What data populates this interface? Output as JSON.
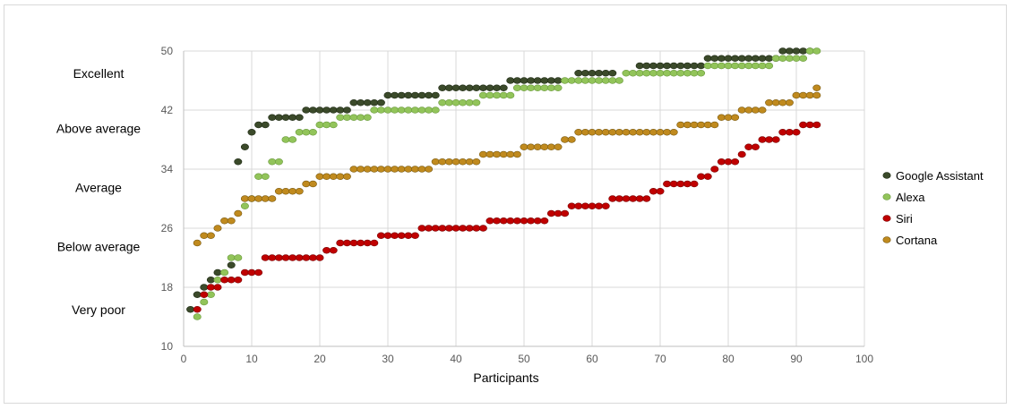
{
  "chart_data": {
    "type": "scatter",
    "title": "",
    "xlabel": "Participants",
    "ylabel": "",
    "xlim": [
      0,
      100
    ],
    "ylim": [
      10,
      50
    ],
    "x_ticks": [
      0,
      10,
      20,
      30,
      40,
      50,
      60,
      70,
      80,
      90,
      100
    ],
    "y_ticks": [
      10,
      18,
      26,
      34,
      42,
      50
    ],
    "grid": true,
    "legend_position": "right",
    "category_labels": [
      {
        "label": "Excellent",
        "y": 47
      },
      {
        "label": "Above average",
        "y": 39.5
      },
      {
        "label": "Average",
        "y": 31.5
      },
      {
        "label": "Below average",
        "y": 23.5
      },
      {
        "label": "Very poor",
        "y": 15
      }
    ],
    "series": [
      {
        "name": "Google Assistant",
        "color": "#3b4a2a",
        "stroke": "#1e2a14",
        "runs": [
          [
            1,
            1,
            15
          ],
          [
            2,
            2,
            17
          ],
          [
            3,
            3,
            18
          ],
          [
            4,
            4,
            19
          ],
          [
            5,
            5,
            20
          ],
          [
            7,
            7,
            21
          ],
          [
            8,
            8,
            35
          ],
          [
            9,
            9,
            37
          ],
          [
            10,
            10,
            39
          ],
          [
            11,
            12,
            40
          ],
          [
            13,
            17,
            41
          ],
          [
            18,
            24,
            42
          ],
          [
            25,
            29,
            43
          ],
          [
            30,
            37,
            44
          ],
          [
            38,
            47,
            45
          ],
          [
            48,
            55,
            46
          ],
          [
            58,
            63,
            47
          ],
          [
            67,
            76,
            48
          ],
          [
            77,
            87,
            49
          ],
          [
            88,
            92,
            50
          ]
        ]
      },
      {
        "name": "Alexa",
        "color": "#92c45a",
        "stroke": "#6a9a3c",
        "runs": [
          [
            2,
            2,
            14
          ],
          [
            3,
            3,
            16
          ],
          [
            4,
            4,
            17
          ],
          [
            5,
            5,
            19
          ],
          [
            6,
            6,
            20
          ],
          [
            7,
            8,
            22
          ],
          [
            9,
            9,
            29
          ],
          [
            10,
            10,
            30
          ],
          [
            11,
            12,
            33
          ],
          [
            13,
            14,
            35
          ],
          [
            15,
            16,
            38
          ],
          [
            17,
            19,
            39
          ],
          [
            20,
            22,
            40
          ],
          [
            23,
            27,
            41
          ],
          [
            28,
            37,
            42
          ],
          [
            38,
            43,
            43
          ],
          [
            44,
            48,
            44
          ],
          [
            49,
            55,
            45
          ],
          [
            56,
            64,
            46
          ],
          [
            65,
            76,
            47
          ],
          [
            77,
            86,
            48
          ],
          [
            87,
            91,
            49
          ],
          [
            92,
            93,
            50
          ]
        ]
      },
      {
        "name": "Siri",
        "color": "#c00000",
        "stroke": "#7a0000",
        "runs": [
          [
            2,
            2,
            15
          ],
          [
            3,
            3,
            17
          ],
          [
            4,
            5,
            18
          ],
          [
            6,
            8,
            19
          ],
          [
            9,
            11,
            20
          ],
          [
            12,
            20,
            22
          ],
          [
            21,
            22,
            23
          ],
          [
            23,
            28,
            24
          ],
          [
            29,
            34,
            25
          ],
          [
            35,
            44,
            26
          ],
          [
            45,
            53,
            27
          ],
          [
            54,
            56,
            28
          ],
          [
            57,
            62,
            29
          ],
          [
            63,
            68,
            30
          ],
          [
            69,
            70,
            31
          ],
          [
            71,
            75,
            32
          ],
          [
            76,
            77,
            33
          ],
          [
            78,
            78,
            34
          ],
          [
            79,
            81,
            35
          ],
          [
            82,
            82,
            36
          ],
          [
            83,
            84,
            37
          ],
          [
            85,
            87,
            38
          ],
          [
            88,
            90,
            39
          ],
          [
            91,
            93,
            40
          ]
        ]
      },
      {
        "name": "Cortana",
        "color": "#c08a1e",
        "stroke": "#7a5a10",
        "runs": [
          [
            2,
            2,
            24
          ],
          [
            3,
            4,
            25
          ],
          [
            5,
            5,
            26
          ],
          [
            6,
            7,
            27
          ],
          [
            8,
            8,
            28
          ],
          [
            9,
            13,
            30
          ],
          [
            14,
            17,
            31
          ],
          [
            18,
            19,
            32
          ],
          [
            20,
            24,
            33
          ],
          [
            25,
            36,
            34
          ],
          [
            37,
            43,
            35
          ],
          [
            44,
            49,
            36
          ],
          [
            50,
            55,
            37
          ],
          [
            56,
            57,
            38
          ],
          [
            58,
            72,
            39
          ],
          [
            73,
            78,
            40
          ],
          [
            79,
            81,
            41
          ],
          [
            82,
            85,
            42
          ],
          [
            86,
            89,
            43
          ],
          [
            90,
            93,
            44
          ],
          [
            93,
            93,
            45
          ]
        ]
      }
    ]
  }
}
